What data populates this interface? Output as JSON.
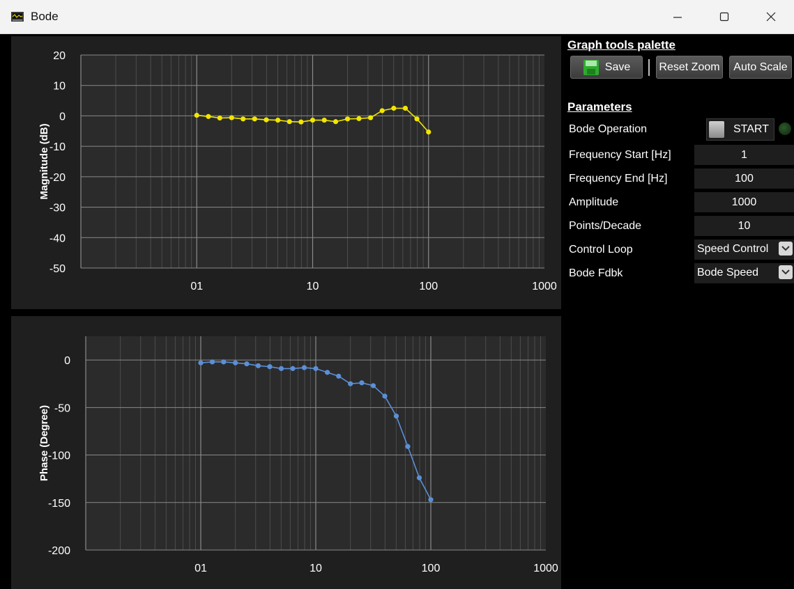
{
  "window": {
    "title": "Bode",
    "icon": "scope-icon",
    "controls": [
      "minimize-icon",
      "maximize-icon",
      "close-icon"
    ]
  },
  "toolbar": {
    "header": "Graph tools palette",
    "save_label": "Save",
    "reset_zoom_label": "Reset Zoom",
    "auto_scale_label": "Auto Scale"
  },
  "parameters": {
    "header": "Parameters",
    "bode_operation_label": "Bode Operation",
    "start_label": "START",
    "freq_start_label": "Frequency Start [Hz]",
    "freq_start_value": "1",
    "freq_end_label": "Frequency End [Hz]",
    "freq_end_value": "100",
    "amplitude_label": "Amplitude",
    "amplitude_value": "1000",
    "points_label": "Points/Decade",
    "points_value": "10",
    "control_loop_label": "Control Loop",
    "control_loop_value": "Speed Control",
    "bode_fdbk_label": "Bode Fdbk",
    "bode_fdbk_value": "Bode Speed"
  },
  "colors": {
    "magnitude_series": "#f2e600",
    "phase_series": "#5b8fd6",
    "panel_bg": "#1f1f1f",
    "led_off": "#1a3a1a"
  },
  "chart_data": [
    {
      "type": "line",
      "xscale": "log",
      "xlim": [
        0.1,
        1000
      ],
      "ylim": [
        -50,
        20
      ],
      "x_tick_labels": [
        "01",
        "10",
        "100",
        "1000"
      ],
      "x_tick_values": [
        1,
        10,
        100,
        1000
      ],
      "y_ticks": [
        20,
        10,
        0,
        -10,
        -20,
        -30,
        -40,
        -50
      ],
      "ylabel": "Magnitude (dB)",
      "xlabel": "",
      "grid": true,
      "series": [
        {
          "x": [
            1,
            1.26,
            1.58,
            2,
            2.51,
            3.16,
            3.98,
            5.01,
            6.31,
            7.94,
            10,
            12.6,
            15.8,
            20,
            25.1,
            31.6,
            39.8,
            50.1,
            63.1,
            79.4,
            100
          ],
          "y": [
            0.2,
            -0.2,
            -0.7,
            -0.6,
            -1.0,
            -1.0,
            -1.3,
            -1.4,
            -1.9,
            -2.0,
            -1.4,
            -1.4,
            -1.9,
            -1.0,
            -0.9,
            -0.6,
            1.7,
            2.5,
            2.5,
            -1.0,
            -5.3
          ]
        }
      ]
    },
    {
      "type": "line",
      "xscale": "log",
      "xlim": [
        0.1,
        1000
      ],
      "ylim": [
        -200,
        25
      ],
      "x_tick_labels": [
        "01",
        "10",
        "100",
        "1000"
      ],
      "x_tick_values": [
        1,
        10,
        100,
        1000
      ],
      "y_ticks": [
        0,
        -50,
        -100,
        -150,
        -200
      ],
      "ylabel": "Phase (Degree)",
      "xlabel": "",
      "grid": true,
      "series": [
        {
          "x": [
            1,
            1.26,
            1.58,
            2,
            2.51,
            3.16,
            3.98,
            5.01,
            6.31,
            7.94,
            10,
            12.6,
            15.8,
            20,
            25.1,
            31.6,
            39.8,
            50.1,
            63.1,
            79.4,
            100
          ],
          "y": [
            -3,
            -2,
            -2,
            -3,
            -4,
            -6,
            -7,
            -9,
            -9,
            -8,
            -9,
            -13,
            -17,
            -25,
            -24,
            -27,
            -38,
            -59,
            -91,
            -124,
            -147
          ]
        }
      ]
    }
  ]
}
